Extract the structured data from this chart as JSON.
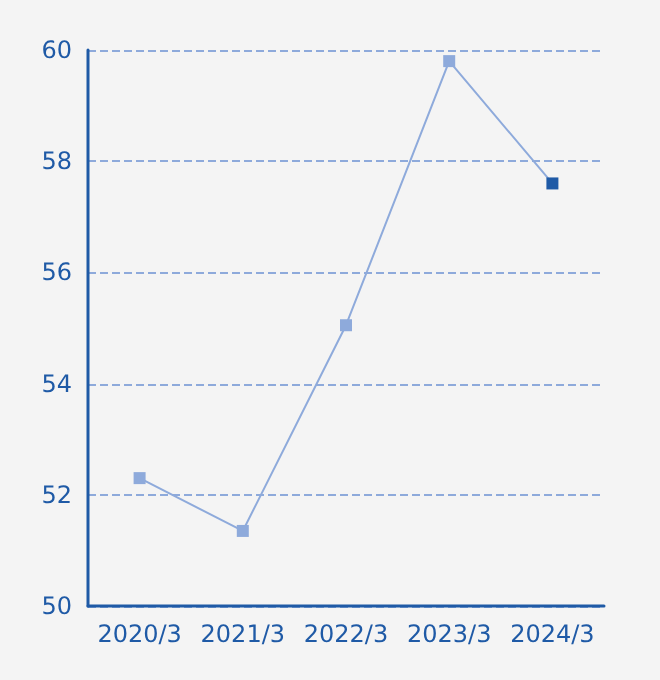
{
  "chart_data": {
    "type": "line",
    "categories": [
      "2020/3",
      "2021/3",
      "2022/3",
      "2023/3",
      "2024/3"
    ],
    "series": [
      {
        "color": "#8eaadb",
        "colors": [
          "#8eaadb",
          "#8eaadb",
          "#8eaadb",
          "#8eaadb",
          "#1f5aa6"
        ],
        "values": [
          52.3,
          51.35,
          55.05,
          59.8,
          57.6
        ]
      }
    ],
    "ylim": [
      50,
      60
    ],
    "yticks": [
      50,
      52,
      54,
      56,
      58,
      60
    ],
    "grid": "y",
    "marker": "square"
  }
}
